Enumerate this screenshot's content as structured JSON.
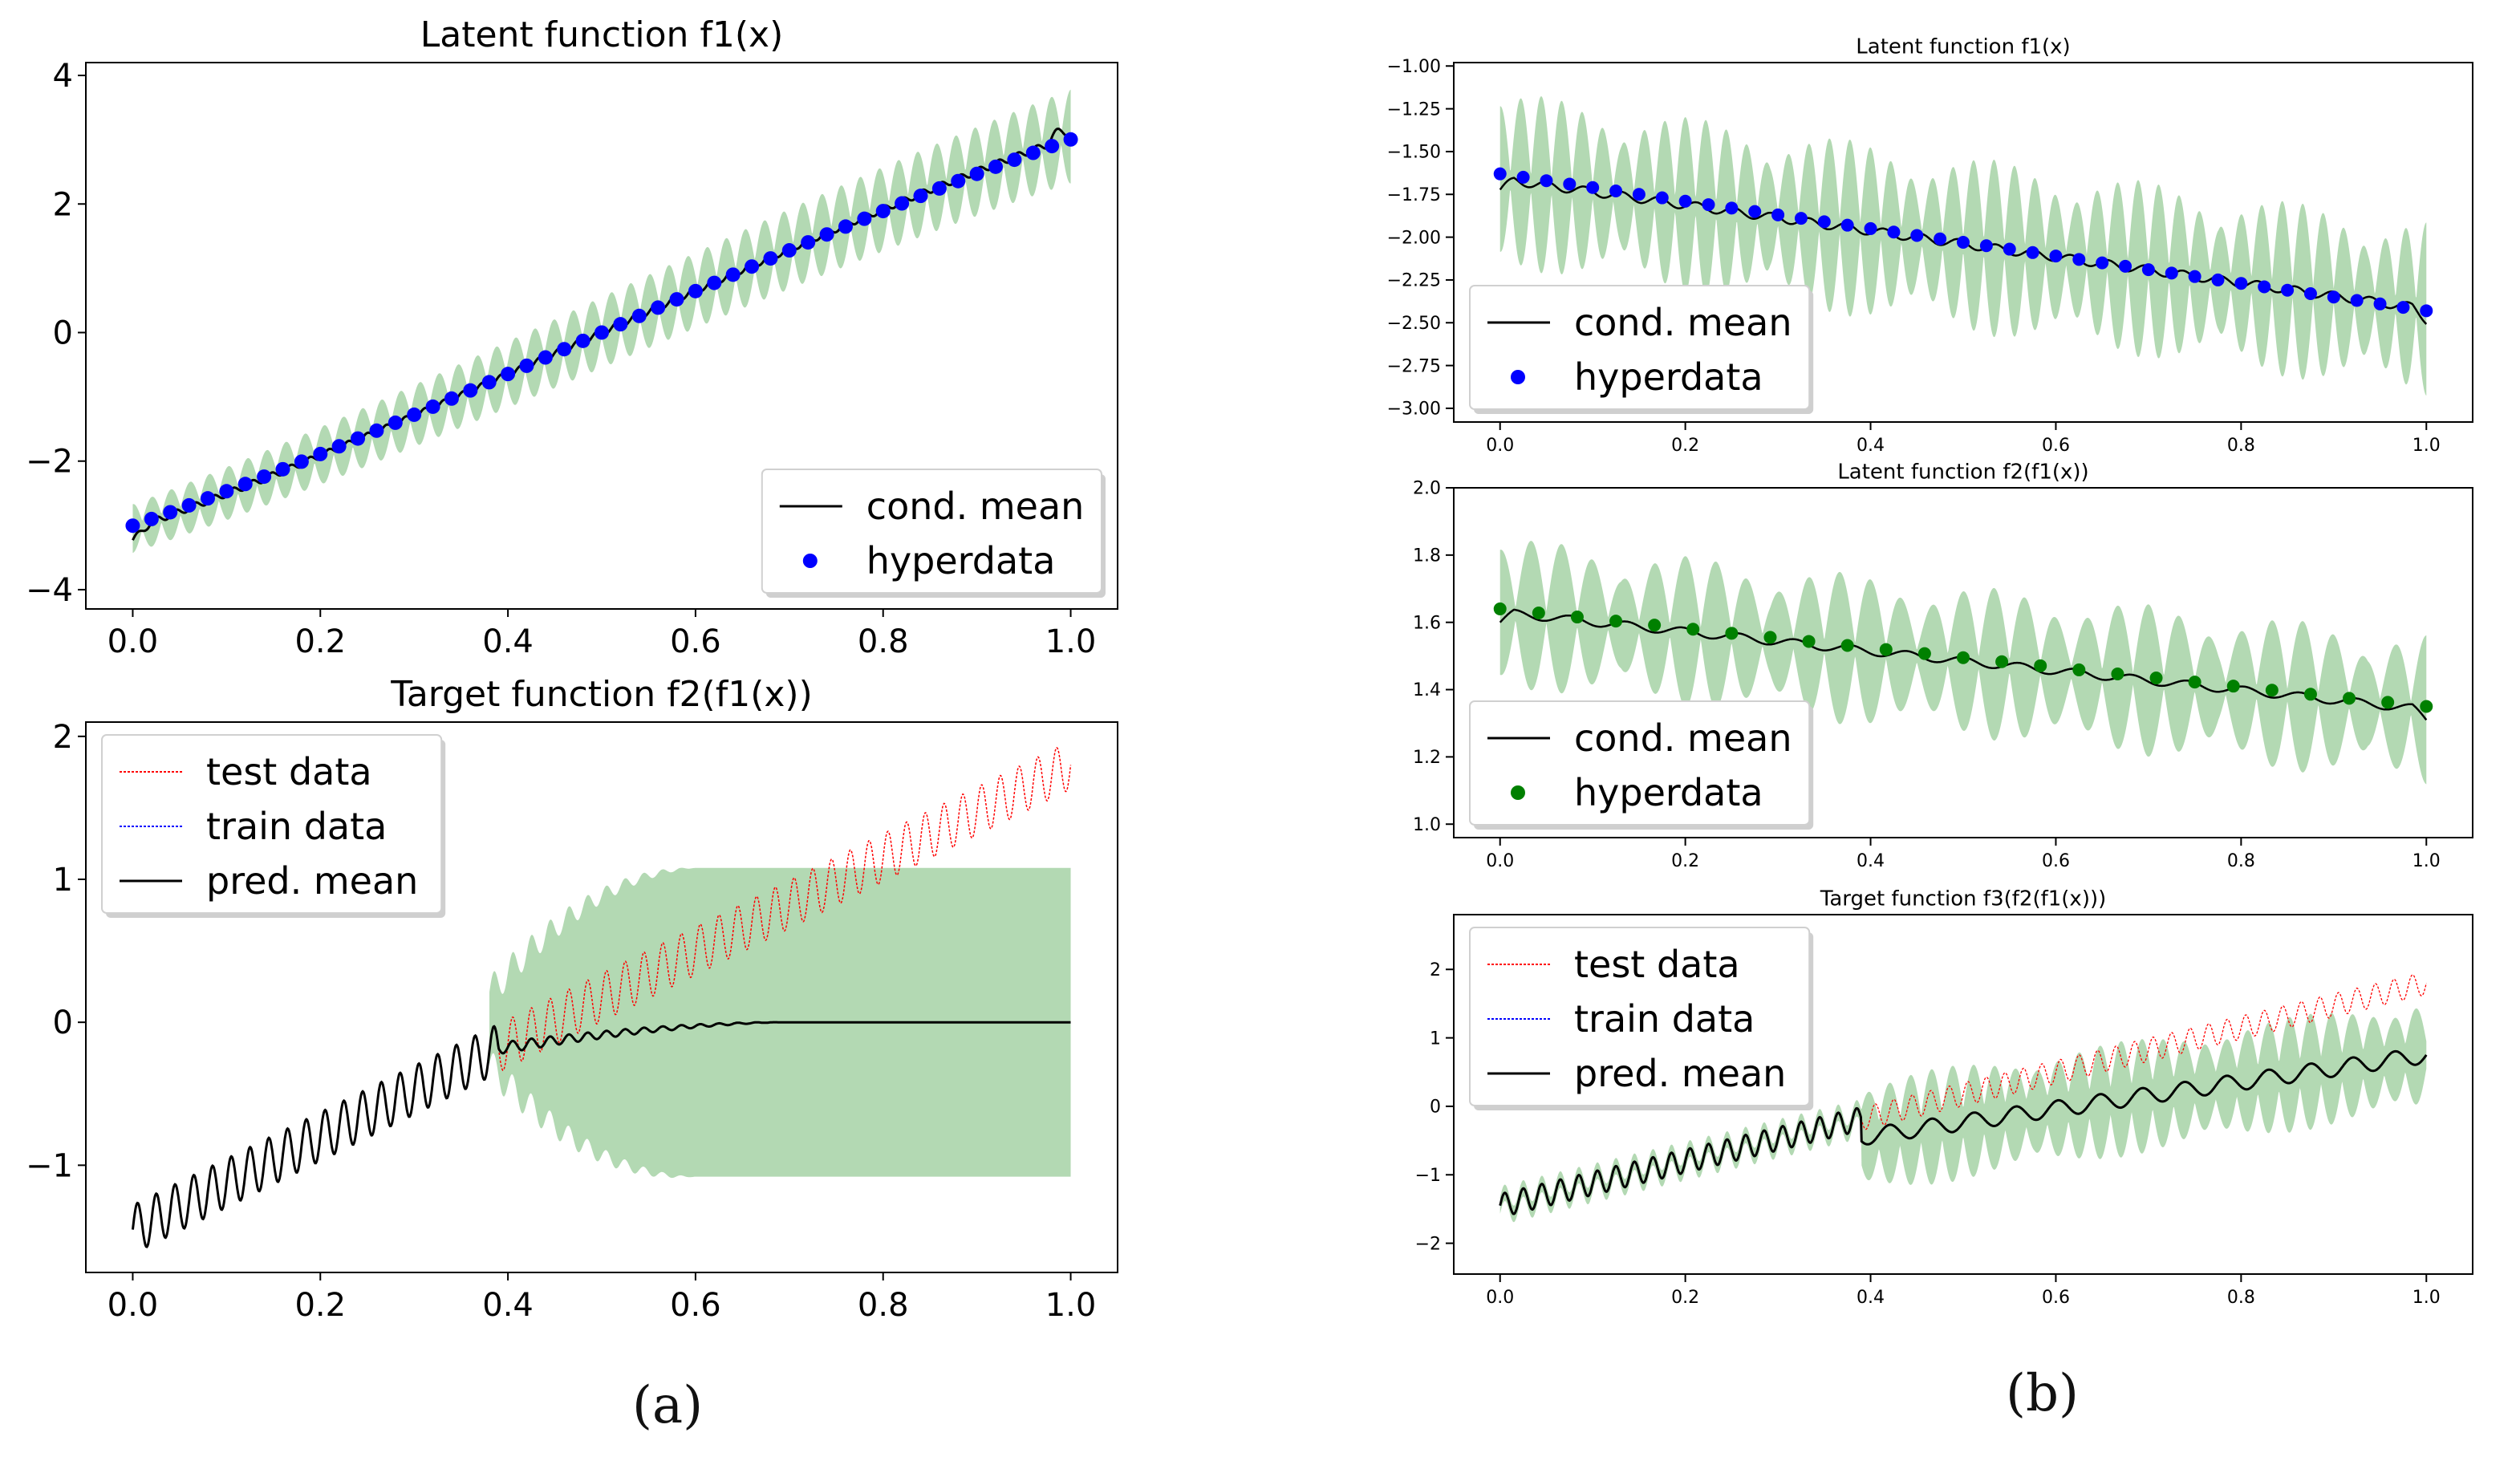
{
  "captions": {
    "a": "(a)",
    "b": "(b)"
  },
  "colors": {
    "band": "#b3d9b3",
    "mean": "#000000",
    "hyper_blue": "#0000ff",
    "hyper_green": "#008000",
    "test": "#ff0000",
    "train": "#0000ff",
    "axis": "#000000"
  },
  "chart_data": [
    {
      "id": "a_top",
      "type": "line",
      "title": "Latent function f1(x)",
      "xlim": [
        -0.05,
        1.05
      ],
      "ylim": [
        -4.3,
        4.2
      ],
      "xticks": [
        0.0,
        0.2,
        0.4,
        0.6,
        0.8,
        1.0
      ],
      "xtick_labels": [
        "0.0",
        "0.2",
        "0.4",
        "0.6",
        "0.8",
        "1.0"
      ],
      "yticks": [
        4,
        2,
        0,
        -2,
        -4
      ],
      "ytick_labels": [
        "4",
        "2",
        "0",
        "−2",
        "−4"
      ],
      "legend": {
        "position": "lower-right",
        "entries": [
          "cond. mean",
          "hyperdata"
        ]
      },
      "series": [
        {
          "name": "cond. mean",
          "kind": "line",
          "mean": "3.05*sin(1.32*(x-0.5))/sin(0.66)",
          "band": "0.3+0.35*x",
          "wiggle": 0.05,
          "osc_period": 40
        },
        {
          "name": "hyperdata",
          "kind": "scatter",
          "color": "hyper_blue",
          "count": 51,
          "x_range": [
            0,
            1
          ],
          "y_start": -3.15,
          "y_end": 2.9
        }
      ]
    },
    {
      "id": "a_bottom",
      "type": "line",
      "title": "Target function f2(f1(x))",
      "xlim": [
        -0.05,
        1.05
      ],
      "ylim": [
        -1.75,
        2.1
      ],
      "xticks": [
        0.0,
        0.2,
        0.4,
        0.6,
        0.8,
        1.0
      ],
      "xtick_labels": [
        "0.0",
        "0.2",
        "0.4",
        "0.6",
        "0.8",
        "1.0"
      ],
      "yticks": [
        2,
        1,
        0,
        -1
      ],
      "ytick_labels": [
        "2",
        "1",
        "0",
        "−1"
      ],
      "legend": {
        "position": "upper-left",
        "entries": [
          "test data",
          "train data",
          "pred. mean"
        ]
      },
      "train_end": 0.39,
      "series": [
        {
          "name": "test data",
          "kind": "line",
          "color": "test",
          "trend_start": -1.45,
          "trend_end": 1.8,
          "osc_amp": 0.17,
          "osc_period": 50,
          "x_range": [
            0.38,
            1.0
          ]
        },
        {
          "name": "train data",
          "kind": "line",
          "color": "train",
          "x_range": [
            0.0,
            0.39
          ]
        },
        {
          "name": "pred. mean",
          "kind": "line",
          "color": "mean",
          "flat_value": 0.0
        }
      ],
      "band_after_train": {
        "half_width_max": 1.08,
        "center": 0.0
      }
    },
    {
      "id": "b_top",
      "type": "line",
      "title": "Latent function f1(x)",
      "xlim": [
        -0.05,
        1.05
      ],
      "ylim": [
        -3.08,
        -0.98
      ],
      "xticks": [
        0.0,
        0.2,
        0.4,
        0.6,
        0.8,
        1.0
      ],
      "xtick_labels": [
        "0.0",
        "0.2",
        "0.4",
        "0.6",
        "0.8",
        "1.0"
      ],
      "yticks": [
        -1.0,
        -1.25,
        -1.5,
        -1.75,
        -2.0,
        -2.25,
        -2.5,
        -2.75,
        -3.0
      ],
      "ytick_labels": [
        "−1.00",
        "−1.25",
        "−1.50",
        "−1.75",
        "−2.00",
        "−2.25",
        "−2.50",
        "−2.75",
        "−3.00"
      ],
      "legend": {
        "position": "lower-left",
        "entries": [
          "cond. mean",
          "hyperdata"
        ]
      },
      "series": [
        {
          "name": "cond. mean",
          "kind": "line",
          "y_start": -1.65,
          "y_end": -2.43,
          "band": 0.45,
          "osc_period": 45
        },
        {
          "name": "hyperdata",
          "kind": "scatter",
          "color": "hyper_blue",
          "count": 41,
          "x_range": [
            0,
            1
          ],
          "y_start": -1.63,
          "y_end": -2.43
        }
      ]
    },
    {
      "id": "b_mid",
      "type": "line",
      "title": "Latent function f2(f1(x))",
      "xlim": [
        -0.05,
        1.05
      ],
      "ylim": [
        0.96,
        2.0
      ],
      "xticks": [
        0.0,
        0.2,
        0.4,
        0.6,
        0.8,
        1.0
      ],
      "xtick_labels": [
        "0.0",
        "0.2",
        "0.4",
        "0.6",
        "0.8",
        "1.0"
      ],
      "yticks": [
        2.0,
        1.8,
        1.6,
        1.4,
        1.2,
        1.0
      ],
      "ytick_labels": [
        "2.0",
        "1.8",
        "1.6",
        "1.4",
        "1.2",
        "1.0"
      ],
      "legend": {
        "position": "lower-left",
        "entries": [
          "cond. mean",
          "hyperdata"
        ]
      },
      "series": [
        {
          "name": "cond. mean",
          "kind": "line",
          "y_start": 1.63,
          "y_end": 1.34,
          "band": 0.2,
          "osc_period": 30
        },
        {
          "name": "hyperdata",
          "kind": "scatter",
          "color": "hyper_green",
          "count": 25,
          "x_range": [
            0,
            1
          ],
          "y_start": 1.64,
          "y_end": 1.35
        }
      ]
    },
    {
      "id": "b_bottom",
      "type": "line",
      "title": "Target function f3(f2(f1(x)))",
      "xlim": [
        -0.05,
        1.05
      ],
      "ylim": [
        -2.45,
        2.8
      ],
      "xticks": [
        0.0,
        0.2,
        0.4,
        0.6,
        0.8,
        1.0
      ],
      "xtick_labels": [
        "0.0",
        "0.2",
        "0.4",
        "0.6",
        "0.8",
        "1.0"
      ],
      "yticks": [
        2,
        1,
        0,
        -1,
        -2
      ],
      "ytick_labels": [
        "2",
        "1",
        "0",
        "−1",
        "−2"
      ],
      "legend": {
        "position": "upper-left",
        "entries": [
          "test data",
          "train data",
          "pred. mean"
        ]
      },
      "train_end": 0.39,
      "series": [
        {
          "name": "test data",
          "kind": "line",
          "color": "test",
          "trend_start": -1.45,
          "trend_end": 1.8,
          "osc_amp": 0.17,
          "osc_period": 50,
          "x_range": [
            0.38,
            1.0
          ]
        },
        {
          "name": "train data",
          "kind": "line",
          "color": "train",
          "x_range": [
            0.0,
            0.39
          ]
        },
        {
          "name": "pred. mean",
          "kind": "line",
          "color": "mean",
          "after_start": -0.45,
          "after_end": 0.75,
          "band": 0.75
        }
      ]
    }
  ]
}
